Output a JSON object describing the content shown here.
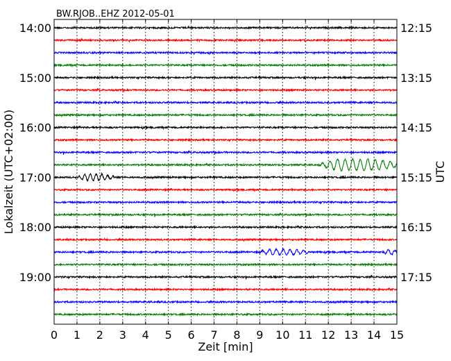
{
  "chart_data": {
    "type": "line",
    "title": "BW.RJOB..EHZ 2012-05-01",
    "xlabel": "Zeit  [min]",
    "ylabel_left": "Lokalzeit (UTC+02:00)",
    "ylabel_right": "UTC",
    "xlim": [
      0,
      15
    ],
    "x_ticks": [
      "0",
      "1",
      "2",
      "3",
      "4",
      "5",
      "6",
      "7",
      "8",
      "9",
      "10",
      "11",
      "12",
      "13",
      "14",
      "15"
    ],
    "left_ticks": [
      "14:00",
      "15:00",
      "16:00",
      "17:00",
      "18:00",
      "19:00"
    ],
    "right_ticks": [
      "12:15",
      "13:15",
      "14:15",
      "15:15",
      "16:15",
      "17:15"
    ],
    "grid_x": true,
    "trace_colors": [
      "#000000",
      "#ff0000",
      "#0000ff",
      "#008000"
    ],
    "traces_count": 24,
    "events": [
      {
        "trace": 11,
        "x_start": 11.5,
        "x_end": 15,
        "amplitude": 0.45,
        "period": 0.33
      },
      {
        "trace": 12,
        "x_start": 0.9,
        "x_end": 2.6,
        "amplitude": 0.25,
        "period": 0.25
      },
      {
        "trace": 18,
        "x_start": 8.9,
        "x_end": 11.1,
        "amplitude": 0.22,
        "period": 0.3
      },
      {
        "trace": 18,
        "x_start": 14.4,
        "x_end": 15,
        "amplitude": 0.2,
        "period": 0.3
      }
    ]
  }
}
